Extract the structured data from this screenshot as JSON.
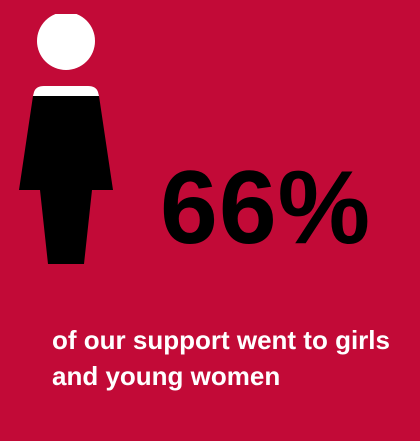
{
  "colors": {
    "background": "#c20a37",
    "figure_head": "#ffffff",
    "figure_body": "#000000",
    "stat_text": "#000000",
    "caption_text": "#ffffff"
  },
  "icon": "woman-figure-icon",
  "stat": {
    "value": "66%"
  },
  "caption": {
    "text": "of our support went to girls and young women"
  }
}
